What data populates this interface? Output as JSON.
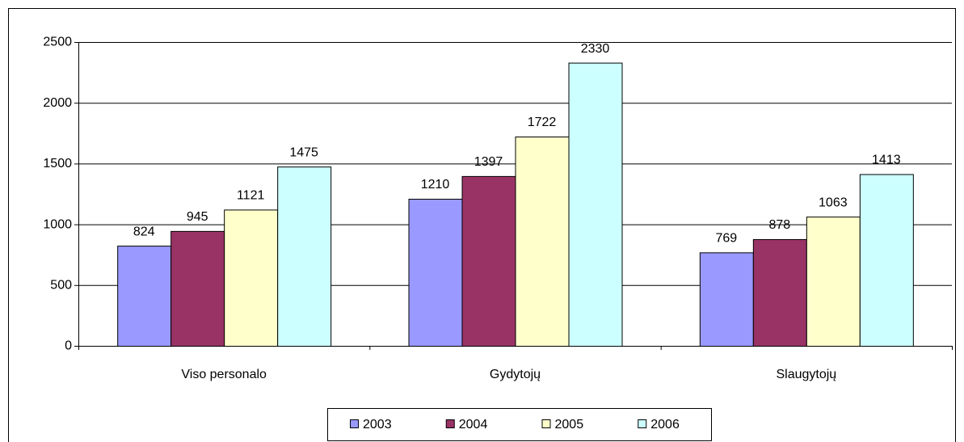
{
  "chart_data": {
    "type": "bar",
    "categories": [
      "Viso personalo",
      "Gydytojų",
      "Slaugytojų"
    ],
    "series": [
      {
        "name": "2003",
        "color": "#9999ff",
        "values": [
          824,
          1210,
          769
        ]
      },
      {
        "name": "2004",
        "color": "#993366",
        "values": [
          945,
          1397,
          878
        ]
      },
      {
        "name": "2005",
        "color": "#ffffcc",
        "values": [
          1121,
          1722,
          1063
        ]
      },
      {
        "name": "2006",
        "color": "#ccffff",
        "values": [
          1475,
          2330,
          1413
        ]
      }
    ],
    "ylim": [
      0,
      2500
    ],
    "yticks": [
      0,
      500,
      1000,
      1500,
      2000,
      2500
    ],
    "grid": true,
    "legend": "bottom"
  }
}
